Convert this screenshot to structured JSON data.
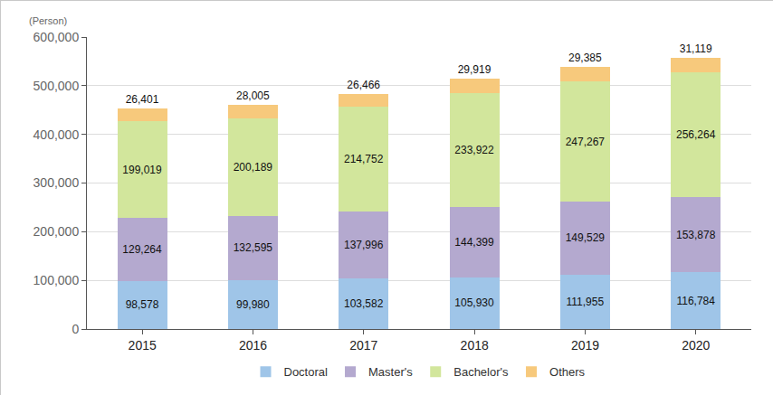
{
  "chart_data": {
    "type": "bar",
    "stacked": true,
    "data_labels": true,
    "grid": true,
    "legend": "bottom",
    "ylabel": "(Person)",
    "categories": [
      "2015",
      "2016",
      "2017",
      "2018",
      "2019",
      "2020"
    ],
    "series": [
      {
        "name": "Doctoral",
        "color": "#9fc5e8",
        "values": [
          98578,
          99980,
          103582,
          105930,
          111955,
          116784
        ],
        "value_labels": [
          "98,578",
          "99,980",
          "103,582",
          "105,930",
          "111,955",
          "116,784"
        ]
      },
      {
        "name": "Master's",
        "color": "#b4a9cf",
        "values": [
          129264,
          132595,
          137996,
          144399,
          149529,
          153878
        ],
        "value_labels": [
          "129,264",
          "132,595",
          "137,996",
          "144,399",
          "149,529",
          "153,878"
        ]
      },
      {
        "name": "Bachelor's",
        "color": "#d2e69c",
        "values": [
          199019,
          200189,
          214752,
          233922,
          247267,
          256264
        ],
        "value_labels": [
          "199,019",
          "200,189",
          "214,752",
          "233,922",
          "247,267",
          "256,264"
        ]
      },
      {
        "name": "Others",
        "color": "#f7c97c",
        "values": [
          26401,
          28005,
          26466,
          29919,
          29385,
          31119
        ],
        "value_labels": [
          "26,401",
          "28,005",
          "26,466",
          "29,919",
          "29,385",
          "31,119"
        ]
      }
    ],
    "ylim": [
      0,
      600000
    ],
    "yticks": [
      0,
      {
        "value": 100000,
        "label": "100,000"
      },
      {
        "value": 200000,
        "label": "200,000"
      },
      {
        "value": 300000,
        "label": "300,000"
      },
      {
        "value": 400000,
        "label": "400,000"
      },
      {
        "value": 500000,
        "label": "500,000"
      },
      {
        "value": 600000,
        "label": "600,000"
      }
    ]
  }
}
